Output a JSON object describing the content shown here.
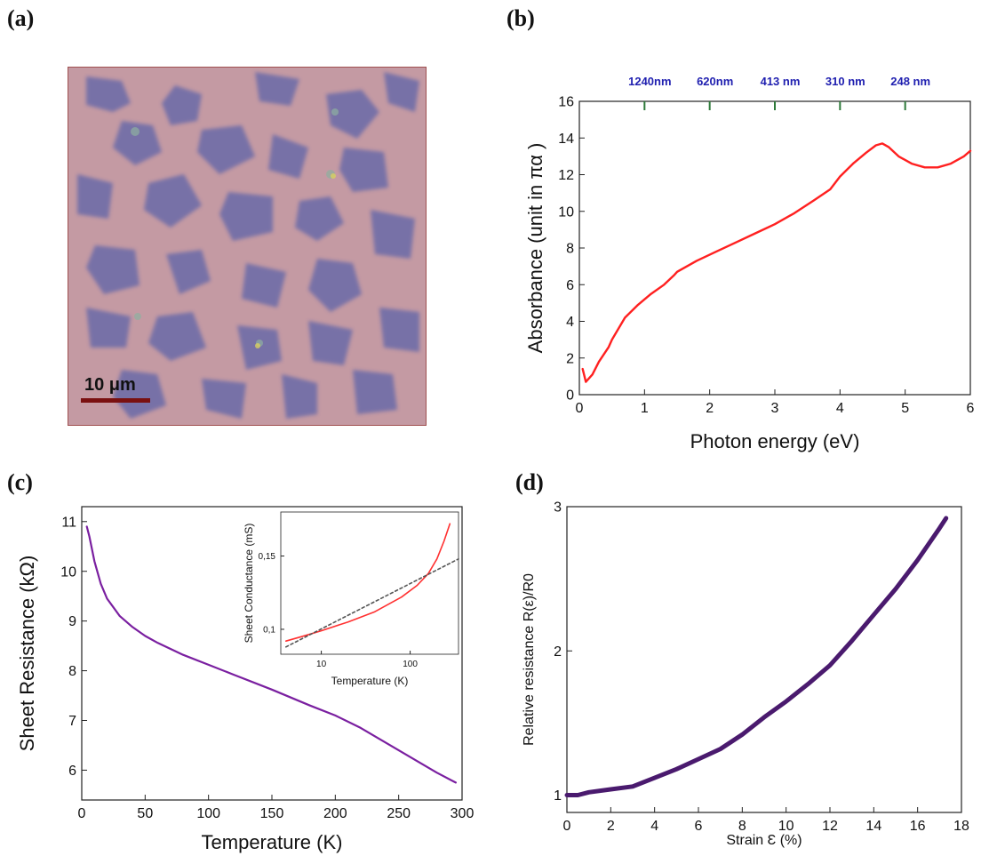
{
  "panels": {
    "a": {
      "label": "(a)",
      "scale_bar": "10 μm",
      "colors": {
        "background": "#c49aa3",
        "flake": "#6b6aa8",
        "scale_bar": "#7a1010"
      }
    },
    "b": {
      "label": "(b)"
    },
    "c": {
      "label": "(c)"
    },
    "d": {
      "label": "(d)"
    }
  },
  "chart_data": [
    {
      "panel": "b",
      "type": "line",
      "xlabel": "Photon energy (eV)",
      "ylabel": "Absorbance (unit in πα )",
      "xlim": [
        0,
        6
      ],
      "ylim": [
        0,
        16
      ],
      "xticks": [
        0,
        1,
        2,
        3,
        4,
        5,
        6
      ],
      "yticks": [
        0,
        2,
        4,
        6,
        8,
        10,
        12,
        14,
        16
      ],
      "top_axis_ticks": [
        {
          "x": 1,
          "label": "1240nm"
        },
        {
          "x": 2,
          "label": "620nm"
        },
        {
          "x": 3,
          "label": "413 nm"
        },
        {
          "x": 4,
          "label": "310 nm"
        },
        {
          "x": 5,
          "label": "248 nm"
        }
      ],
      "series": [
        {
          "color": "#ff2020",
          "x": [
            0.05,
            0.1,
            0.2,
            0.3,
            0.45,
            0.5,
            0.7,
            0.9,
            1.1,
            1.3,
            1.45,
            1.5,
            1.8,
            2.1,
            2.4,
            2.7,
            3.0,
            3.3,
            3.6,
            3.85,
            4.0,
            4.2,
            4.4,
            4.55,
            4.65,
            4.75,
            4.9,
            5.1,
            5.3,
            5.5,
            5.7,
            5.9,
            6.0
          ],
          "y": [
            1.4,
            0.7,
            1.1,
            1.8,
            2.6,
            3.0,
            4.2,
            4.9,
            5.5,
            6.0,
            6.5,
            6.7,
            7.3,
            7.8,
            8.3,
            8.8,
            9.3,
            9.9,
            10.6,
            11.2,
            11.9,
            12.6,
            13.2,
            13.6,
            13.7,
            13.5,
            13.0,
            12.6,
            12.4,
            12.4,
            12.6,
            13.0,
            13.3
          ]
        }
      ]
    },
    {
      "panel": "c",
      "type": "line",
      "xlabel": "Temperature (K)",
      "ylabel": "Sheet Resistance (kΩ)",
      "xlim": [
        0,
        300
      ],
      "ylim": [
        5.4,
        11.3
      ],
      "xticks": [
        0,
        50,
        100,
        150,
        200,
        250,
        300
      ],
      "yticks": [
        6,
        7,
        8,
        9,
        10,
        11
      ],
      "series": [
        {
          "color": "#7a1fa0",
          "x": [
            4,
            6,
            10,
            15,
            20,
            30,
            40,
            50,
            60,
            80,
            100,
            120,
            150,
            180,
            200,
            220,
            250,
            280,
            295
          ],
          "y": [
            10.9,
            10.7,
            10.2,
            9.75,
            9.45,
            9.1,
            8.88,
            8.7,
            8.56,
            8.32,
            8.12,
            7.92,
            7.62,
            7.3,
            7.1,
            6.85,
            6.4,
            5.95,
            5.75
          ]
        }
      ],
      "inset": {
        "type": "line",
        "xlabel": "Temperature (K)",
        "ylabel": "Sheet Conductance (mS)",
        "xscale": "log",
        "xlim": [
          3.5,
          350
        ],
        "ylim": [
          0.083,
          0.18
        ],
        "xticks": [
          {
            "value": 10,
            "label": "10"
          },
          {
            "value": 100,
            "label": "100"
          }
        ],
        "yticks": [
          {
            "value": 0.1,
            "label": "0,1"
          },
          {
            "value": 0.15,
            "label": "0,15"
          }
        ],
        "series": [
          {
            "color": "#ff3030",
            "x": [
              4,
              6,
              10,
              20,
              40,
              80,
              120,
              160,
              200,
              240,
              280
            ],
            "y": [
              0.092,
              0.095,
              0.099,
              0.105,
              0.112,
              0.122,
              0.13,
              0.138,
              0.148,
              0.16,
              0.172
            ]
          },
          {
            "color": "#555555",
            "dashed": true,
            "x": [
              4,
              350
            ],
            "y": [
              0.088,
              0.148
            ]
          }
        ]
      }
    },
    {
      "panel": "d",
      "type": "line",
      "xlabel": "Strain Ɛ (%)",
      "ylabel": "Relative resistance R(ε)/R0",
      "xlim": [
        0,
        18
      ],
      "ylim": [
        0.88,
        3
      ],
      "xticks": [
        0,
        2,
        4,
        6,
        8,
        10,
        12,
        14,
        16,
        18
      ],
      "yticks": [
        1,
        2,
        3
      ],
      "series": [
        {
          "color": "#4a1a6e",
          "x": [
            0,
            0.5,
            1,
            2,
            3,
            4,
            5,
            6,
            7,
            8,
            9,
            10,
            11,
            12,
            13,
            14,
            15,
            16,
            17,
            17.3
          ],
          "y": [
            1.0,
            1.0,
            1.02,
            1.04,
            1.06,
            1.12,
            1.18,
            1.25,
            1.32,
            1.42,
            1.54,
            1.65,
            1.77,
            1.9,
            2.07,
            2.25,
            2.43,
            2.63,
            2.85,
            2.92
          ]
        }
      ]
    }
  ]
}
